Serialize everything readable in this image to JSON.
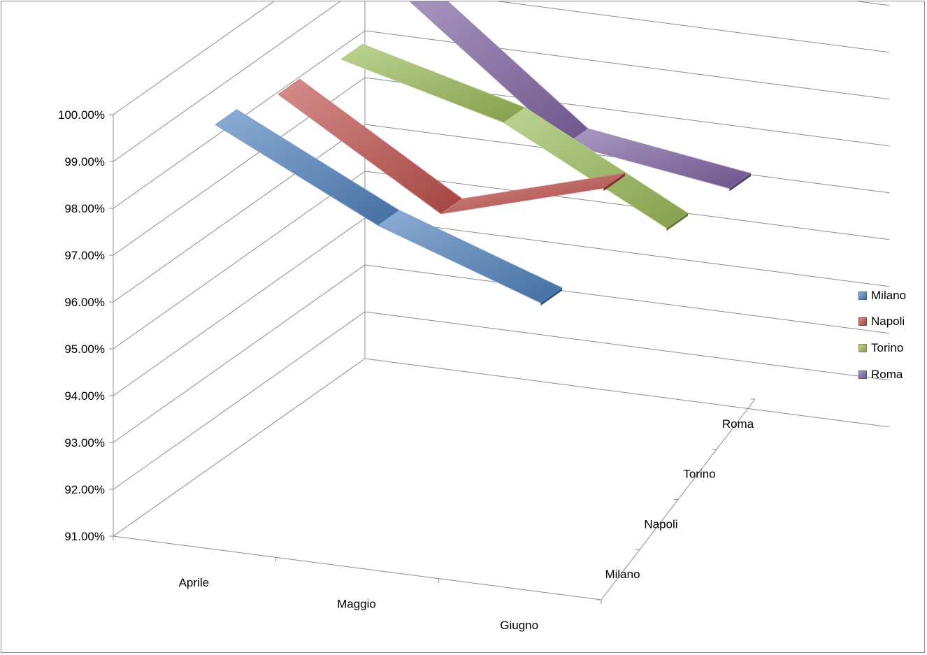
{
  "chart_data": {
    "type": "line",
    "style": "3d-ribbon",
    "categories": [
      "Aprile",
      "Maggio",
      "Giugno"
    ],
    "depth_categories": [
      "Milano",
      "Napoli",
      "Torino",
      "Roma"
    ],
    "y_ticks": [
      "91.00%",
      "92.00%",
      "93.00%",
      "94.00%",
      "95.00%",
      "96.00%",
      "97.00%",
      "98.00%",
      "99.00%",
      "100.00%"
    ],
    "ylim": [
      91,
      100
    ],
    "series": [
      {
        "name": "Milano",
        "values": [
          99.7,
          98.0,
          96.8
        ],
        "color": "#4f81bd"
      },
      {
        "name": "Napoli",
        "values": [
          99.4,
          97.3,
          98.3
        ],
        "color": "#c0504d"
      },
      {
        "name": "Torino",
        "values": [
          99.2,
          98.3,
          96.5
        ],
        "color": "#9bbb59"
      },
      {
        "name": "Roma",
        "values": [
          99.6,
          96.9,
          96.4
        ],
        "color": "#8064a2"
      }
    ],
    "legend_position": "right",
    "grid": true
  }
}
